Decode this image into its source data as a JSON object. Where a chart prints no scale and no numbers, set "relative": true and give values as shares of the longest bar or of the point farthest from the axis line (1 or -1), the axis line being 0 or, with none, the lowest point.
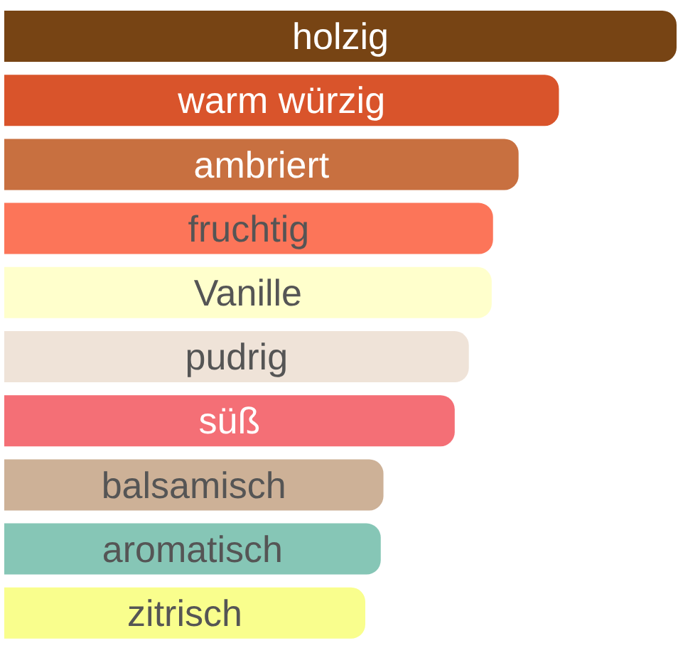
{
  "chart_data": {
    "type": "bar",
    "orientation": "horizontal",
    "relative": true,
    "categories": [
      "holzig",
      "warm würzig",
      "ambriert",
      "fruchtig",
      "Vanille",
      "pudrig",
      "süß",
      "balsamisch",
      "aromatisch",
      "zitrisch"
    ],
    "values": [
      1,
      0.825,
      0.765,
      0.727,
      0.725,
      0.691,
      0.67,
      0.564,
      0.56,
      0.537
    ],
    "colors": [
      "#774414",
      "#d9542b",
      "#c87040",
      "#fc7559",
      "#ffffcc",
      "#efe3d8",
      "#f46f76",
      "#cdb197",
      "#86c6b6",
      "#f9fe8d"
    ]
  }
}
